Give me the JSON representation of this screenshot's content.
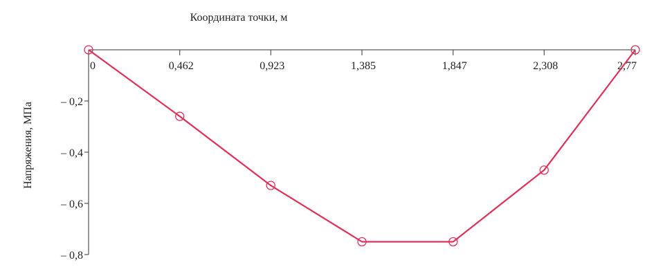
{
  "chart_data": {
    "type": "line",
    "xlabel": "Координата точки, м",
    "ylabel": "Напряжения, МПа",
    "x_tick_labels": [
      "0",
      "0,462",
      "0,923",
      "1,385",
      "1,847",
      "2,308",
      "2,77"
    ],
    "y_tick_labels": [
      "– 0,2",
      "– 0,4",
      "– 0,6",
      "– 0,8"
    ],
    "x_ticks": [
      0,
      0.462,
      0.923,
      1.385,
      1.847,
      2.308,
      2.77
    ],
    "y_ticks": [
      -0.2,
      -0.4,
      -0.6,
      -0.8
    ],
    "xlim": [
      0,
      2.77
    ],
    "ylim": [
      -0.8,
      0
    ],
    "x_axis_position": "top",
    "grid": false,
    "series": [
      {
        "x": [
          0,
          0.462,
          0.923,
          1.385,
          1.847,
          2.308,
          2.77
        ],
        "y": [
          0,
          -0.26,
          -0.53,
          -0.75,
          -0.75,
          -0.47,
          0
        ],
        "color": "#e0305a",
        "marker": "circle"
      }
    ]
  }
}
